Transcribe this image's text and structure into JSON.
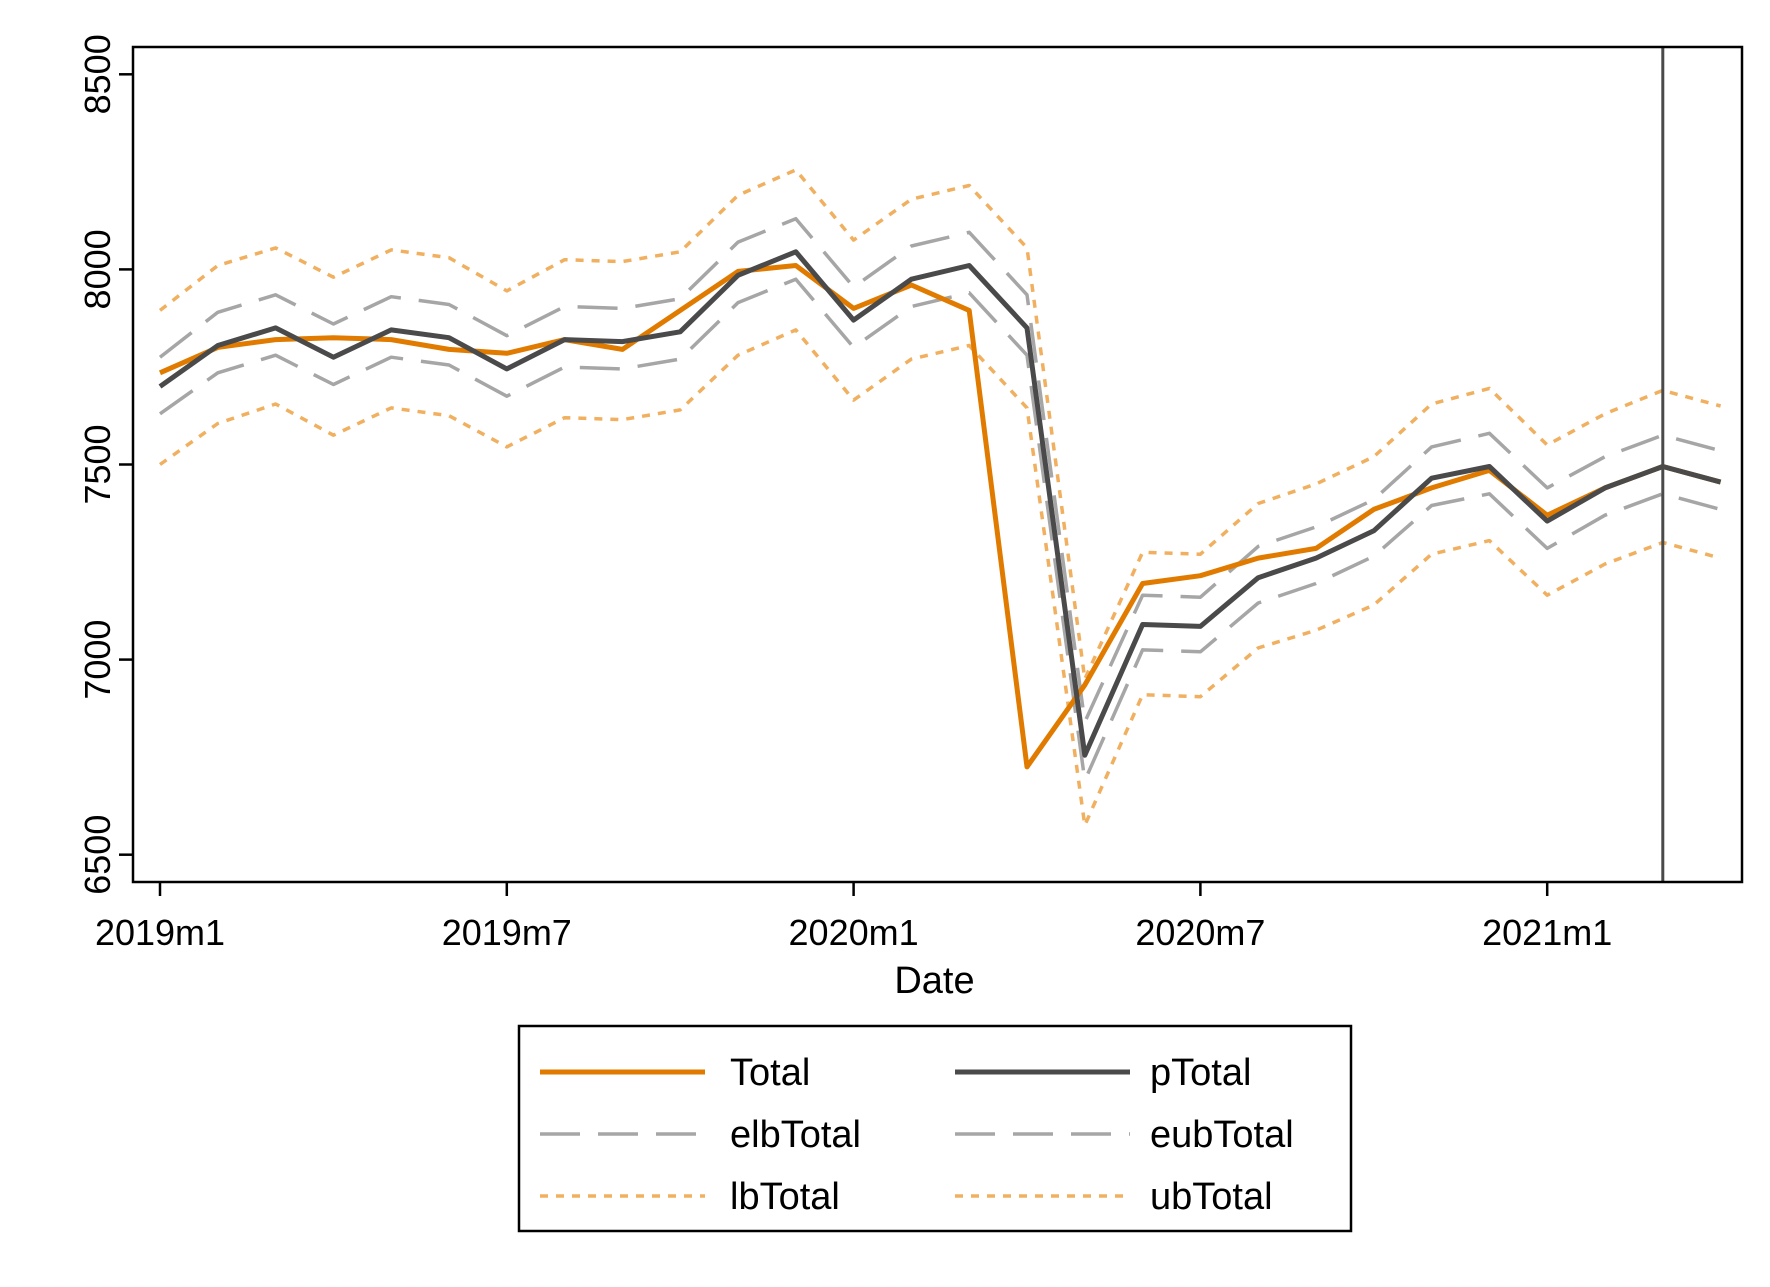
{
  "chart_data": {
    "type": "line",
    "xlabel": "Date",
    "ylabel": "",
    "x": [
      "2019m1",
      "2019m2",
      "2019m3",
      "2019m4",
      "2019m5",
      "2019m6",
      "2019m7",
      "2019m8",
      "2019m9",
      "2019m10",
      "2019m11",
      "2019m12",
      "2020m1",
      "2020m2",
      "2020m3",
      "2020m4",
      "2020m5",
      "2020m6",
      "2020m7",
      "2020m8",
      "2020m9",
      "2020m10",
      "2020m11",
      "2020m12",
      "2021m1",
      "2021m2",
      "2021m3",
      "2021m4"
    ],
    "x_ticks": [
      "2019m1",
      "2019m7",
      "2020m1",
      "2020m7",
      "2021m1"
    ],
    "ylim": [
      6430,
      8570
    ],
    "y_ticks": [
      "6500",
      "7000",
      "7500",
      "8000",
      "8500"
    ],
    "vline": {
      "x": "2021m3"
    },
    "grid": false,
    "legend": "bottom",
    "series": [
      {
        "name": "Total",
        "style": "solid",
        "color": "#E07B00",
        "width": 5,
        "values": [
          7735,
          7800,
          7820,
          7825,
          7820,
          7795,
          7785,
          7820,
          7795,
          7895,
          7995,
          8010,
          7900,
          7960,
          7895,
          6725,
          6935,
          7195,
          7215,
          7260,
          7285,
          7385,
          7440,
          7485,
          7370,
          7440,
          7495,
          7455
        ]
      },
      {
        "name": "pTotal",
        "style": "solid",
        "color": "#4a4a4a",
        "width": 5,
        "values": [
          7700,
          7805,
          7850,
          7775,
          7845,
          7825,
          7745,
          7820,
          7815,
          7840,
          7985,
          8045,
          7870,
          7975,
          8010,
          7850,
          6755,
          7090,
          7085,
          7210,
          7260,
          7330,
          7465,
          7495,
          7355,
          7440,
          7495,
          7455
        ]
      },
      {
        "name": "elbTotal",
        "style": "dashed",
        "color": "#a6a6a6",
        "width": 3.5,
        "values": [
          7630,
          7735,
          7780,
          7705,
          7775,
          7755,
          7675,
          7750,
          7745,
          7770,
          7915,
          7975,
          7800,
          7905,
          7940,
          7780,
          6690,
          7025,
          7020,
          7145,
          7195,
          7265,
          7395,
          7425,
          7285,
          7370,
          7425,
          7385
        ]
      },
      {
        "name": "eubTotal",
        "style": "dashed",
        "color": "#a6a6a6",
        "width": 3.5,
        "values": [
          7775,
          7890,
          7935,
          7860,
          7930,
          7910,
          7830,
          7905,
          7900,
          7925,
          8070,
          8130,
          7955,
          8060,
          8095,
          7935,
          6840,
          7165,
          7160,
          7290,
          7340,
          7410,
          7545,
          7580,
          7440,
          7520,
          7575,
          7535
        ]
      },
      {
        "name": "lbTotal",
        "style": "dotted",
        "color": "#F0B060",
        "width": 3.5,
        "values": [
          7500,
          7605,
          7655,
          7575,
          7645,
          7625,
          7545,
          7620,
          7615,
          7640,
          7780,
          7845,
          7665,
          7770,
          7805,
          7645,
          6575,
          6910,
          6905,
          7030,
          7075,
          7140,
          7270,
          7305,
          7165,
          7245,
          7300,
          7260
        ]
      },
      {
        "name": "ubTotal",
        "style": "dotted",
        "color": "#F0B060",
        "width": 3.5,
        "values": [
          7895,
          8010,
          8055,
          7980,
          8050,
          8030,
          7945,
          8025,
          8020,
          8045,
          8190,
          8255,
          8075,
          8180,
          8215,
          8055,
          6950,
          7275,
          7270,
          7400,
          7450,
          7520,
          7655,
          7695,
          7550,
          7630,
          7690,
          7650
        ]
      }
    ]
  }
}
